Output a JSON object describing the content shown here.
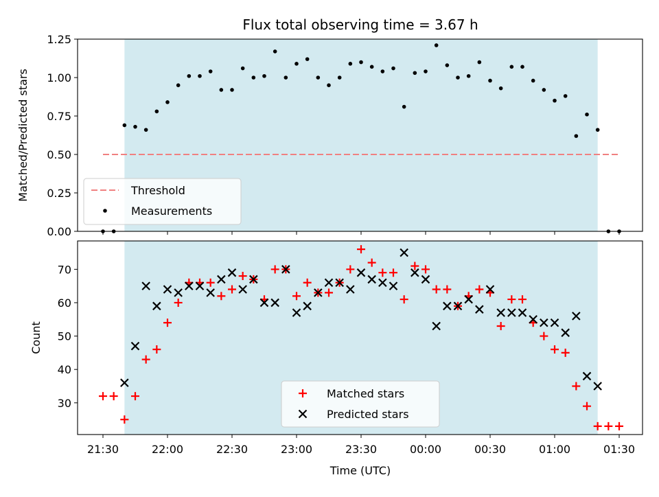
{
  "chart_data": {
    "type": "scatter",
    "title": "Flux total observing time = 3.67 h",
    "xlabel": "Time (UTC)",
    "x_tick_labels": [
      "21:30",
      "22:00",
      "22:30",
      "23:00",
      "23:30",
      "00:00",
      "00:30",
      "01:00",
      "01:30"
    ],
    "colors": {
      "shade": "#d3eaf0",
      "threshold": "#f08080",
      "matched": "#ff0000",
      "predicted": "#000000"
    },
    "shaded_span": {
      "start": "21:40",
      "end": "01:20"
    },
    "top": {
      "ylabel": "Matched/Predicted stars",
      "ylim": [
        0,
        1.25
      ],
      "y_tick_labels": [
        "0.00",
        "0.25",
        "0.50",
        "0.75",
        "1.00",
        "1.25"
      ],
      "threshold": {
        "name": "Threshold",
        "value": 0.5,
        "x_start": "21:30",
        "x_end": "01:30"
      },
      "measurements": {
        "name": "Measurements",
        "x": [
          "21:30",
          "21:35",
          "21:40",
          "21:45",
          "21:50",
          "21:55",
          "22:00",
          "22:05",
          "22:10",
          "22:15",
          "22:20",
          "22:25",
          "22:30",
          "22:35",
          "22:40",
          "22:45",
          "22:50",
          "22:55",
          "23:00",
          "23:05",
          "23:10",
          "23:15",
          "23:20",
          "23:25",
          "23:30",
          "23:35",
          "23:40",
          "23:45",
          "23:50",
          "23:55",
          "00:00",
          "00:05",
          "00:10",
          "00:15",
          "00:20",
          "00:25",
          "00:30",
          "00:35",
          "00:40",
          "00:45",
          "00:50",
          "00:55",
          "01:00",
          "01:05",
          "01:10",
          "01:15",
          "01:20",
          "01:25",
          "01:30"
        ],
        "y": [
          0.0,
          0.0,
          0.69,
          0.68,
          0.66,
          0.78,
          0.84,
          0.95,
          1.01,
          1.01,
          1.04,
          0.92,
          0.92,
          1.06,
          1.0,
          1.01,
          1.17,
          1.0,
          1.09,
          1.12,
          1.0,
          0.95,
          1.0,
          1.09,
          1.1,
          1.07,
          1.04,
          1.06,
          0.81,
          1.03,
          1.04,
          1.21,
          1.08,
          1.0,
          1.01,
          1.1,
          0.98,
          0.93,
          1.07,
          1.07,
          0.98,
          0.92,
          0.85,
          0.88,
          0.62,
          0.76,
          0.66,
          0.0,
          0.0
        ]
      }
    },
    "bottom": {
      "ylabel": "Count",
      "ylim": [
        20.5,
        78.5
      ],
      "y_tick_labels": [
        "30",
        "40",
        "50",
        "60",
        "70"
      ],
      "series": [
        {
          "name": "Matched stars",
          "x": [
            "21:30",
            "21:35",
            "21:40",
            "21:45",
            "21:50",
            "21:55",
            "22:00",
            "22:05",
            "22:10",
            "22:15",
            "22:20",
            "22:25",
            "22:30",
            "22:35",
            "22:40",
            "22:45",
            "22:50",
            "22:55",
            "23:00",
            "23:05",
            "23:10",
            "23:15",
            "23:20",
            "23:25",
            "23:30",
            "23:35",
            "23:40",
            "23:45",
            "23:50",
            "23:55",
            "00:00",
            "00:05",
            "00:10",
            "00:15",
            "00:20",
            "00:25",
            "00:30",
            "00:35",
            "00:40",
            "00:45",
            "00:50",
            "00:55",
            "01:00",
            "01:05",
            "01:10",
            "01:15",
            "01:20",
            "01:25",
            "01:30"
          ],
          "y": [
            32,
            32,
            25,
            32,
            43,
            46,
            54,
            60,
            66,
            66,
            66,
            62,
            64,
            68,
            67,
            61,
            70,
            70,
            62,
            66,
            63,
            63,
            66,
            70,
            76,
            72,
            69,
            69,
            61,
            71,
            70,
            64,
            64,
            59,
            62,
            64,
            63,
            53,
            61,
            61,
            54,
            50,
            46,
            45,
            35,
            29,
            23,
            23,
            23
          ]
        },
        {
          "name": "Predicted stars",
          "x": [
            "21:40",
            "21:45",
            "21:50",
            "21:55",
            "22:00",
            "22:05",
            "22:10",
            "22:15",
            "22:20",
            "22:25",
            "22:30",
            "22:35",
            "22:40",
            "22:45",
            "22:50",
            "22:55",
            "23:00",
            "23:05",
            "23:10",
            "23:15",
            "23:20",
            "23:25",
            "23:30",
            "23:35",
            "23:40",
            "23:45",
            "23:50",
            "23:55",
            "00:00",
            "00:05",
            "00:10",
            "00:15",
            "00:20",
            "00:25",
            "00:30",
            "00:35",
            "00:40",
            "00:45",
            "00:50",
            "00:55",
            "01:00",
            "01:05",
            "01:10",
            "01:15",
            "01:20"
          ],
          "y": [
            36,
            47,
            65,
            59,
            64,
            63,
            65,
            65,
            63,
            67,
            69,
            64,
            67,
            60,
            60,
            70,
            57,
            59,
            63,
            66,
            66,
            64,
            69,
            67,
            66,
            65,
            75,
            69,
            67,
            53,
            59,
            59,
            61,
            58,
            64,
            57,
            57,
            57,
            55,
            54,
            54,
            51,
            56,
            38,
            35
          ]
        }
      ]
    }
  }
}
